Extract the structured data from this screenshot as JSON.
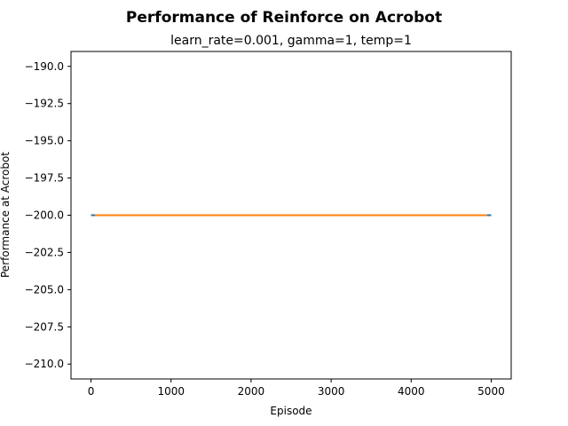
{
  "chart_data": {
    "type": "line",
    "title": "Performance of Reinforce on Acrobot",
    "subtitle": "learn_rate=0.001, gamma=1, temp=1",
    "xlabel": "Episode",
    "ylabel": "Performance at Acrobot",
    "xlim": [
      -250,
      5250
    ],
    "ylim": [
      -211,
      -189
    ],
    "xticks": [
      0,
      1000,
      2000,
      3000,
      4000,
      5000
    ],
    "xtick_labels": [
      "0",
      "1000",
      "2000",
      "3000",
      "4000",
      "5000"
    ],
    "yticks": [
      -190,
      -192.5,
      -195,
      -197.5,
      -200,
      -202.5,
      -205,
      -207.5,
      -210
    ],
    "ytick_labels": [
      "−190.0",
      "−192.5",
      "−195.0",
      "−197.5",
      "−200.0",
      "−202.5",
      "−205.0",
      "−207.5",
      "−210.0"
    ],
    "grid": false,
    "series": [
      {
        "x": [
          0,
          5000
        ],
        "y": [
          -200,
          -200
        ],
        "color": "#1f77b4"
      },
      {
        "x": [
          50,
          4950
        ],
        "y": [
          -200,
          -200
        ],
        "color": "#ff7f0e"
      }
    ]
  }
}
